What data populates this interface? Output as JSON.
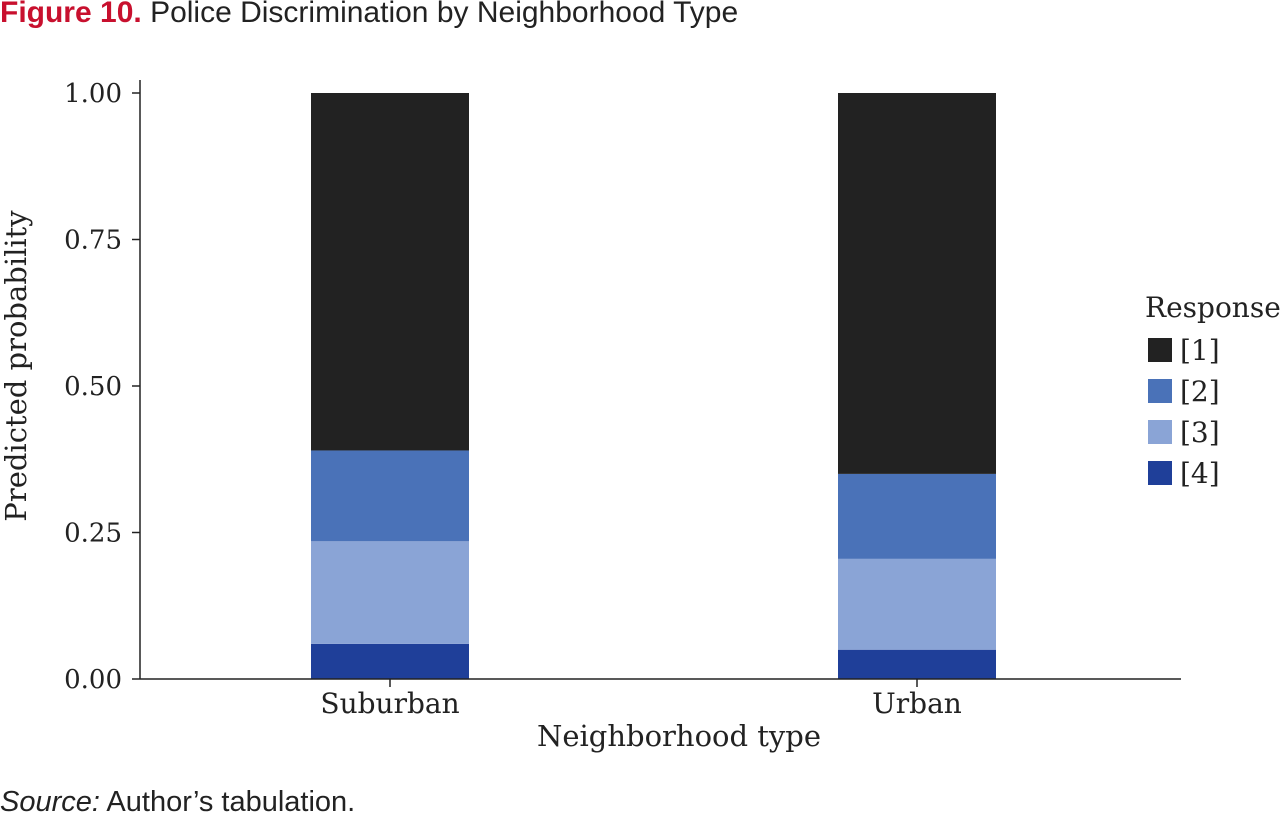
{
  "figure": {
    "label": "Figure 10.",
    "title": "Police Discrimination by Neighborhood Type"
  },
  "source": {
    "label": "Source:",
    "text": "Author’s tabulation."
  },
  "chart_data": {
    "type": "bar",
    "stacked": true,
    "categories": [
      "Suburban",
      "Urban"
    ],
    "series": [
      {
        "name": "[4]",
        "values": [
          0.06,
          0.05
        ],
        "color": "#1f3f99"
      },
      {
        "name": "[3]",
        "values": [
          0.175,
          0.155
        ],
        "color": "#8aa4d6"
      },
      {
        "name": "[2]",
        "values": [
          0.155,
          0.145
        ],
        "color": "#4a72b8"
      },
      {
        "name": "[1]",
        "values": [
          0.61,
          0.65
        ],
        "color": "#222222"
      }
    ],
    "xlabel": "Neighborhood type",
    "ylabel": "Predicted probability",
    "ylim": [
      0,
      1
    ],
    "yticks": [
      "0.00",
      "0.25",
      "0.50",
      "0.75",
      "1.00"
    ],
    "legend": {
      "title": "Response",
      "placement": "right",
      "order": [
        "[1]",
        "[2]",
        "[3]",
        "[4]"
      ]
    },
    "grid": false
  }
}
